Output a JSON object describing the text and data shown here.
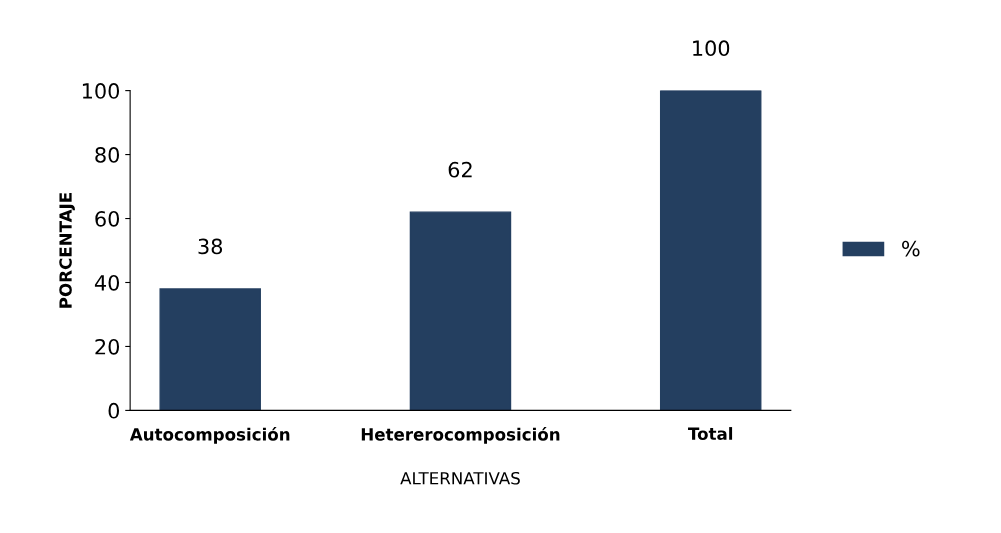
{
  "chart_data": {
    "type": "bar",
    "xlabel": "ALTERNATIVAS",
    "ylabel": "PORCENTAJE",
    "categories": [
      "Autocomposición",
      "Hetererocomposición",
      "Total"
    ],
    "series": [
      {
        "name": "%",
        "color": "#243f60",
        "values": [
          38,
          62,
          100
        ]
      }
    ],
    "ylim": [
      0,
      100
    ],
    "yticks": [
      0,
      20,
      40,
      60,
      80,
      100
    ],
    "grid": false,
    "legend": "right",
    "data_labels": true
  }
}
